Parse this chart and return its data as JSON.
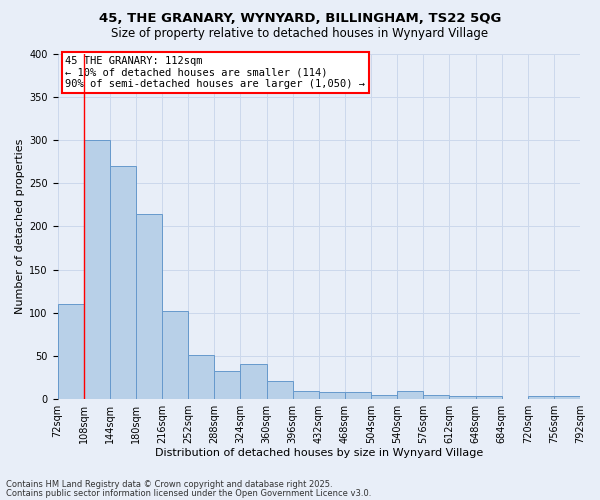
{
  "title1": "45, THE GRANARY, WYNYARD, BILLINGHAM, TS22 5QG",
  "title2": "Size of property relative to detached houses in Wynyard Village",
  "xlabel": "Distribution of detached houses by size in Wynyard Village",
  "ylabel": "Number of detached properties",
  "footer1": "Contains HM Land Registry data © Crown copyright and database right 2025.",
  "footer2": "Contains public sector information licensed under the Open Government Licence v3.0.",
  "annotation_line1": "45 THE GRANARY: 112sqm",
  "annotation_line2": "← 10% of detached houses are smaller (114)",
  "annotation_line3": "90% of semi-detached houses are larger (1,050) →",
  "bar_values": [
    110,
    300,
    270,
    215,
    102,
    51,
    33,
    41,
    21,
    9,
    8,
    8,
    5,
    9,
    5,
    4,
    4,
    0,
    4,
    4
  ],
  "bin_labels": [
    "72sqm",
    "108sqm",
    "144sqm",
    "180sqm",
    "216sqm",
    "252sqm",
    "288sqm",
    "324sqm",
    "360sqm",
    "396sqm",
    "432sqm",
    "468sqm",
    "504sqm",
    "540sqm",
    "576sqm",
    "612sqm",
    "648sqm",
    "684sqm",
    "720sqm",
    "756sqm",
    "792sqm"
  ],
  "bar_color": "#b8d0e8",
  "bar_edge_color": "#6699cc",
  "grid_color": "#ccd8ec",
  "bg_color": "#e8eef8",
  "red_line_x": 1,
  "ylim": [
    0,
    400
  ],
  "yticks": [
    0,
    50,
    100,
    150,
    200,
    250,
    300,
    350,
    400
  ],
  "fig_width": 6.0,
  "fig_height": 5.0,
  "title1_fontsize": 9.5,
  "title2_fontsize": 8.5,
  "xlabel_fontsize": 8,
  "ylabel_fontsize": 8,
  "tick_fontsize": 7,
  "annotation_fontsize": 7.5,
  "footer_fontsize": 6
}
